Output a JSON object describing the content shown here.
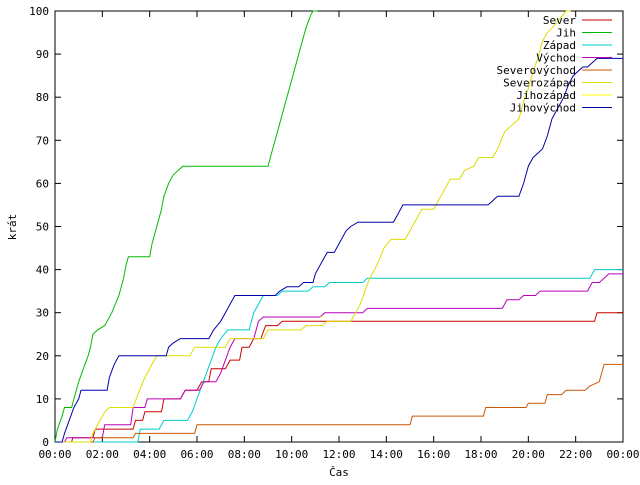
{
  "chart_data": {
    "type": "line",
    "title": "",
    "xlabel": "Čas",
    "ylabel": "krát",
    "xlim": [
      0,
      24
    ],
    "ylim": [
      0,
      100
    ],
    "x_ticks": [
      "00:00",
      "02:00",
      "04:00",
      "06:00",
      "08:00",
      "10:00",
      "12:00",
      "14:00",
      "16:00",
      "18:00",
      "20:00",
      "22:00",
      "00:00"
    ],
    "y_ticks": [
      0,
      10,
      20,
      30,
      40,
      50,
      60,
      70,
      80,
      90,
      100
    ],
    "legend_position": "top-right",
    "grid": false,
    "series": [
      {
        "name": "Sever",
        "color": "#cc0000",
        "points": [
          [
            0,
            0
          ],
          [
            0.7,
            0
          ],
          [
            0.75,
            1
          ],
          [
            1.6,
            1
          ],
          [
            1.7,
            3
          ],
          [
            3.3,
            3
          ],
          [
            3.4,
            5
          ],
          [
            3.7,
            5
          ],
          [
            3.8,
            7
          ],
          [
            4.5,
            7
          ],
          [
            4.6,
            10
          ],
          [
            5.3,
            10
          ],
          [
            5.5,
            12
          ],
          [
            6.0,
            12
          ],
          [
            6.2,
            14
          ],
          [
            6.5,
            14
          ],
          [
            6.6,
            17
          ],
          [
            7.2,
            17
          ],
          [
            7.4,
            19
          ],
          [
            7.8,
            19
          ],
          [
            7.9,
            22
          ],
          [
            8.2,
            22
          ],
          [
            8.4,
            24
          ],
          [
            8.7,
            24
          ],
          [
            8.9,
            27
          ],
          [
            9.4,
            27
          ],
          [
            9.6,
            28
          ],
          [
            22.8,
            28
          ],
          [
            22.9,
            30
          ],
          [
            24,
            30
          ]
        ]
      },
      {
        "name": "Jih",
        "color": "#00bb00",
        "points": [
          [
            0,
            0
          ],
          [
            0.1,
            3
          ],
          [
            0.3,
            6
          ],
          [
            0.4,
            8
          ],
          [
            0.7,
            8
          ],
          [
            0.8,
            10
          ],
          [
            0.9,
            12
          ],
          [
            1.0,
            14
          ],
          [
            1.2,
            17
          ],
          [
            1.4,
            20
          ],
          [
            1.5,
            22
          ],
          [
            1.6,
            25
          ],
          [
            1.8,
            26
          ],
          [
            2.1,
            27
          ],
          [
            2.4,
            30
          ],
          [
            2.7,
            34
          ],
          [
            2.9,
            38
          ],
          [
            3.0,
            41
          ],
          [
            3.1,
            43
          ],
          [
            4.0,
            43
          ],
          [
            4.1,
            46
          ],
          [
            4.3,
            50
          ],
          [
            4.5,
            54
          ],
          [
            4.6,
            57
          ],
          [
            4.8,
            60
          ],
          [
            5.0,
            62
          ],
          [
            5.2,
            63
          ],
          [
            5.4,
            64
          ],
          [
            9.0,
            64
          ],
          [
            9.2,
            68
          ],
          [
            9.4,
            72
          ],
          [
            9.6,
            76
          ],
          [
            9.8,
            80
          ],
          [
            10.0,
            84
          ],
          [
            10.2,
            88
          ],
          [
            10.4,
            92
          ],
          [
            10.6,
            96
          ],
          [
            10.8,
            99
          ],
          [
            10.9,
            100
          ],
          [
            11.1,
            100
          ]
        ]
      },
      {
        "name": "Západ",
        "color": "#00cccc",
        "points": [
          [
            0,
            0
          ],
          [
            3.5,
            0
          ],
          [
            3.6,
            3
          ],
          [
            4.4,
            3
          ],
          [
            4.6,
            5
          ],
          [
            5.6,
            5
          ],
          [
            5.8,
            7
          ],
          [
            6.0,
            10
          ],
          [
            6.2,
            13
          ],
          [
            6.4,
            16
          ],
          [
            6.6,
            19
          ],
          [
            6.8,
            22
          ],
          [
            7.0,
            24
          ],
          [
            7.3,
            26
          ],
          [
            8.2,
            26
          ],
          [
            8.4,
            30
          ],
          [
            8.6,
            32
          ],
          [
            8.8,
            34
          ],
          [
            9.4,
            34
          ],
          [
            9.6,
            35
          ],
          [
            10.7,
            35
          ],
          [
            10.9,
            36
          ],
          [
            11.4,
            36
          ],
          [
            11.6,
            37
          ],
          [
            13.0,
            37
          ],
          [
            13.2,
            38
          ],
          [
            22.6,
            38
          ],
          [
            22.8,
            40
          ],
          [
            24,
            40
          ]
        ]
      },
      {
        "name": "Východ",
        "color": "#bb00bb",
        "points": [
          [
            0,
            0
          ],
          [
            0.4,
            0
          ],
          [
            0.5,
            1
          ],
          [
            2.0,
            1
          ],
          [
            2.1,
            4
          ],
          [
            2.7,
            4
          ],
          [
            3.2,
            4
          ],
          [
            3.3,
            8
          ],
          [
            3.8,
            8
          ],
          [
            3.9,
            10
          ],
          [
            5.3,
            10
          ],
          [
            5.5,
            12
          ],
          [
            6.1,
            12
          ],
          [
            6.3,
            14
          ],
          [
            6.8,
            14
          ],
          [
            7.0,
            16
          ],
          [
            7.2,
            19
          ],
          [
            7.4,
            22
          ],
          [
            7.6,
            24
          ],
          [
            8.4,
            24
          ],
          [
            8.6,
            28
          ],
          [
            8.8,
            29
          ],
          [
            11.2,
            29
          ],
          [
            11.4,
            30
          ],
          [
            13.0,
            30
          ],
          [
            13.2,
            31
          ],
          [
            18.9,
            31
          ],
          [
            19.1,
            33
          ],
          [
            19.6,
            33
          ],
          [
            19.8,
            34
          ],
          [
            20.3,
            34
          ],
          [
            20.5,
            35
          ],
          [
            22.5,
            35
          ],
          [
            22.7,
            37
          ],
          [
            23.0,
            37
          ],
          [
            23.2,
            38
          ],
          [
            23.4,
            39
          ],
          [
            24,
            39
          ]
        ]
      },
      {
        "name": "Severovýchod",
        "color": "#cc5500",
        "points": [
          [
            0,
            0
          ],
          [
            1.6,
            0
          ],
          [
            1.7,
            1
          ],
          [
            3.3,
            1
          ],
          [
            3.4,
            2
          ],
          [
            5.9,
            2
          ],
          [
            6.0,
            4
          ],
          [
            15.0,
            4
          ],
          [
            15.1,
            6
          ],
          [
            18.1,
            6
          ],
          [
            18.2,
            8
          ],
          [
            19.9,
            8
          ],
          [
            20.0,
            9
          ],
          [
            20.7,
            9
          ],
          [
            20.8,
            11
          ],
          [
            21.4,
            11
          ],
          [
            21.6,
            12
          ],
          [
            22.4,
            12
          ],
          [
            22.6,
            13
          ],
          [
            23.0,
            14
          ],
          [
            23.1,
            16
          ],
          [
            23.2,
            18
          ],
          [
            24,
            18
          ]
        ]
      },
      {
        "name": "Severozápad",
        "color": "#dddd00",
        "points": [
          [
            0,
            0
          ],
          [
            1.5,
            0
          ],
          [
            1.6,
            2
          ],
          [
            1.9,
            5
          ],
          [
            2.1,
            7
          ],
          [
            2.3,
            8
          ],
          [
            3.3,
            8
          ],
          [
            3.5,
            11
          ],
          [
            3.8,
            15
          ],
          [
            4.1,
            18
          ],
          [
            4.3,
            20
          ],
          [
            5.7,
            20
          ],
          [
            5.9,
            22
          ],
          [
            7.2,
            22
          ],
          [
            7.4,
            24
          ],
          [
            8.8,
            24
          ],
          [
            9.0,
            26
          ],
          [
            10.4,
            26
          ],
          [
            10.6,
            27
          ],
          [
            11.3,
            27
          ],
          [
            11.5,
            28
          ],
          [
            12.5,
            28
          ],
          [
            12.7,
            30
          ],
          [
            12.9,
            32
          ],
          [
            13.1,
            35
          ],
          [
            13.3,
            38
          ],
          [
            13.6,
            41
          ],
          [
            13.9,
            45
          ],
          [
            14.2,
            47
          ],
          [
            14.8,
            47
          ],
          [
            15.0,
            49
          ],
          [
            15.3,
            52
          ],
          [
            15.5,
            54
          ],
          [
            16.0,
            54
          ],
          [
            16.2,
            56
          ],
          [
            16.5,
            59
          ],
          [
            16.7,
            61
          ],
          [
            17.1,
            61
          ],
          [
            17.3,
            63
          ],
          [
            17.7,
            64
          ],
          [
            17.9,
            66
          ],
          [
            18.5,
            66
          ],
          [
            18.7,
            68
          ],
          [
            19.0,
            72
          ],
          [
            19.2,
            73
          ],
          [
            19.6,
            75
          ],
          [
            19.8,
            79
          ],
          [
            20.0,
            82
          ],
          [
            20.2,
            86
          ],
          [
            20.4,
            89
          ],
          [
            20.6,
            93
          ],
          [
            20.8,
            95
          ],
          [
            21.0,
            96
          ],
          [
            21.3,
            98
          ],
          [
            21.6,
            100
          ],
          [
            21.8,
            100
          ]
        ]
      },
      {
        "name": "Jihozápad",
        "color": "#ffff00",
        "points": [
          [
            11.2,
            29
          ],
          [
            11.3,
            29
          ]
        ]
      },
      {
        "name": "Jihovýchod",
        "color": "#0000aa",
        "points": [
          [
            0,
            0
          ],
          [
            0.3,
            0
          ],
          [
            0.4,
            2
          ],
          [
            0.6,
            5
          ],
          [
            0.8,
            8
          ],
          [
            1.0,
            10
          ],
          [
            1.1,
            12
          ],
          [
            2.2,
            12
          ],
          [
            2.3,
            15
          ],
          [
            2.5,
            18
          ],
          [
            2.7,
            20
          ],
          [
            4.7,
            20
          ],
          [
            4.8,
            22
          ],
          [
            5.0,
            23
          ],
          [
            5.3,
            24
          ],
          [
            6.5,
            24
          ],
          [
            6.7,
            26
          ],
          [
            7.0,
            28
          ],
          [
            7.2,
            30
          ],
          [
            7.4,
            32
          ],
          [
            7.6,
            34
          ],
          [
            9.3,
            34
          ],
          [
            9.5,
            35
          ],
          [
            9.8,
            36
          ],
          [
            10.3,
            36
          ],
          [
            10.5,
            37
          ],
          [
            10.9,
            37
          ],
          [
            11.0,
            39
          ],
          [
            11.3,
            42
          ],
          [
            11.5,
            44
          ],
          [
            11.8,
            44
          ],
          [
            12.0,
            46
          ],
          [
            12.3,
            49
          ],
          [
            12.5,
            50
          ],
          [
            12.8,
            51
          ],
          [
            14.3,
            51
          ],
          [
            14.5,
            53
          ],
          [
            14.7,
            55
          ],
          [
            18.3,
            55
          ],
          [
            18.5,
            56
          ],
          [
            18.7,
            57
          ],
          [
            19.6,
            57
          ],
          [
            19.8,
            60
          ],
          [
            20.0,
            64
          ],
          [
            20.2,
            66
          ],
          [
            20.4,
            67
          ],
          [
            20.6,
            68
          ],
          [
            20.8,
            71
          ],
          [
            21.0,
            75
          ],
          [
            21.2,
            77
          ],
          [
            21.5,
            80
          ],
          [
            21.7,
            83
          ],
          [
            21.9,
            85
          ],
          [
            22.1,
            86
          ],
          [
            22.3,
            87
          ],
          [
            22.5,
            87
          ],
          [
            22.7,
            88
          ],
          [
            22.9,
            89
          ],
          [
            24,
            89
          ]
        ]
      }
    ]
  }
}
